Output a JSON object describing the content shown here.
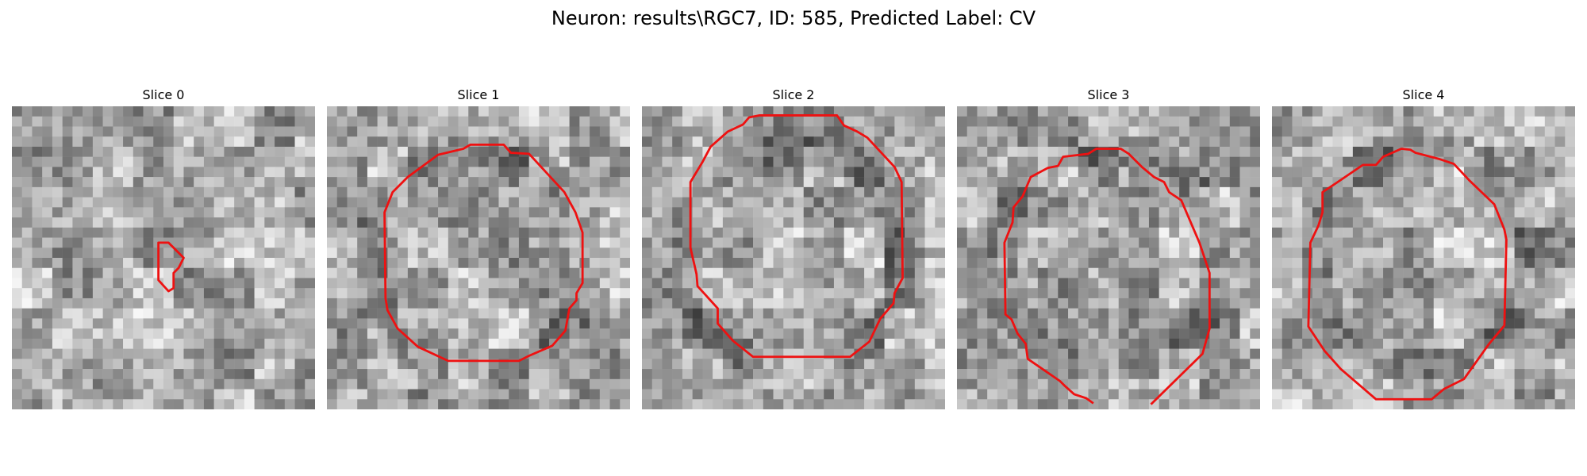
{
  "figure": {
    "title": "Neuron: results\\RGC7, ID: 585, Predicted Label: CV"
  },
  "panels": [
    {
      "title": "Slice 0",
      "texture_seed": 11,
      "contour": "closed"
    },
    {
      "title": "Slice 1",
      "texture_seed": 23,
      "contour": "closed"
    },
    {
      "title": "Slice 2",
      "texture_seed": 37,
      "contour": "closed"
    },
    {
      "title": "Slice 3",
      "texture_seed": 53,
      "contour": "open"
    },
    {
      "title": "Slice 4",
      "texture_seed": 71,
      "contour": "closed"
    }
  ],
  "colors": {
    "contour": "#ee1111",
    "background": "#ffffff"
  },
  "image_grid": {
    "cells_per_side": 30,
    "colormap": "gray"
  }
}
